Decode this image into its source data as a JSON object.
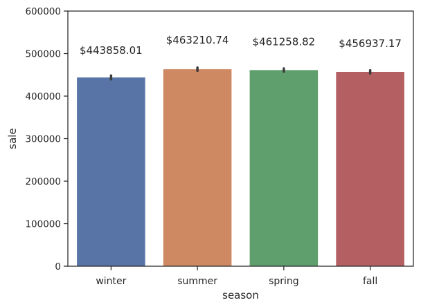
{
  "chart_data": {
    "type": "bar",
    "title": "",
    "xlabel": "season",
    "ylabel": "sale",
    "categories": [
      "winter",
      "summer",
      "spring",
      "fall"
    ],
    "values": [
      443858.01,
      463210.74,
      461258.82,
      456937.17
    ],
    "value_labels": [
      "$443858.01",
      "$463210.74",
      "$461258.82",
      "$456937.17"
    ],
    "error_bars": [
      [
        439500,
        448300
      ],
      [
        459500,
        467000
      ],
      [
        457800,
        465000
      ],
      [
        453200,
        460700
      ]
    ],
    "colors": [
      "#5874a6",
      "#ce8962",
      "#5f9f6e",
      "#b45f62"
    ],
    "ylim": [
      0,
      600000
    ],
    "yticks": [
      0,
      100000,
      200000,
      300000,
      400000,
      500000,
      600000
    ],
    "ytick_labels": [
      "0",
      "100000",
      "200000",
      "300000",
      "400000",
      "500000",
      "600000"
    ],
    "grid": false,
    "legend": "none"
  }
}
